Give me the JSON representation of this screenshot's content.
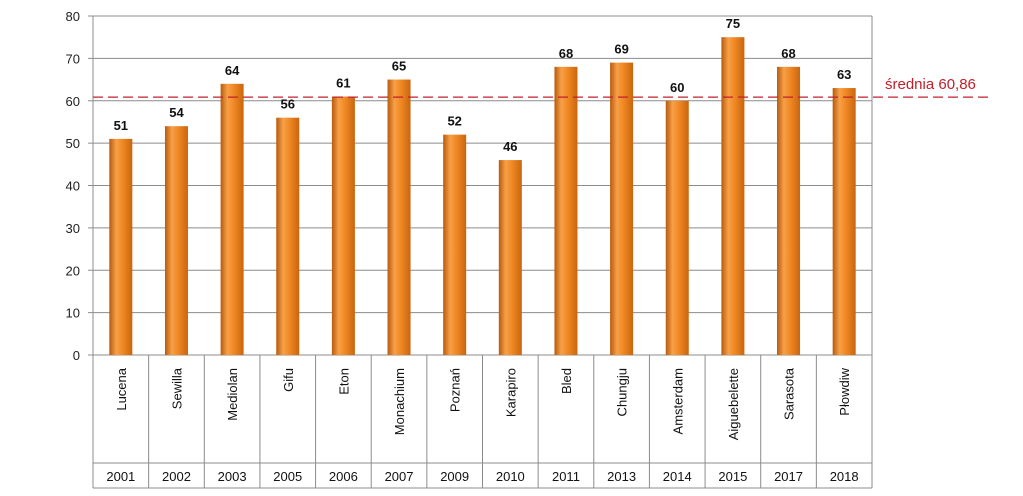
{
  "chart_data": {
    "type": "bar",
    "title": "",
    "xlabel": "",
    "ylabel": "",
    "ylim": [
      0,
      80
    ],
    "yticks": [
      0,
      10,
      20,
      30,
      40,
      50,
      60,
      70,
      80
    ],
    "grid": true,
    "categories": [
      "Lucena",
      "Sewilla",
      "Mediolan",
      "Gifu",
      "Eton",
      "Monachium",
      "Poznań",
      "Karapiro",
      "Bled",
      "Chungju",
      "Amsterdam",
      "Aiguebelette",
      "Sarasota",
      "Płowdiw"
    ],
    "years": [
      "2001",
      "2002",
      "2003",
      "2005",
      "2006",
      "2007",
      "2009",
      "2010",
      "2011",
      "2013",
      "2014",
      "2015",
      "2017",
      "2018"
    ],
    "values": [
      51,
      54,
      64,
      56,
      61,
      65,
      52,
      46,
      68,
      69,
      60,
      75,
      68,
      63
    ],
    "data_labels": [
      "51",
      "54",
      "64",
      "56",
      "61",
      "65",
      "52",
      "46",
      "68",
      "69",
      "60",
      "75",
      "68",
      "63"
    ],
    "average": {
      "value": 60.86,
      "label": "średnia 60,86",
      "color": "#c0202c"
    },
    "bar_color": "#f0841c"
  }
}
